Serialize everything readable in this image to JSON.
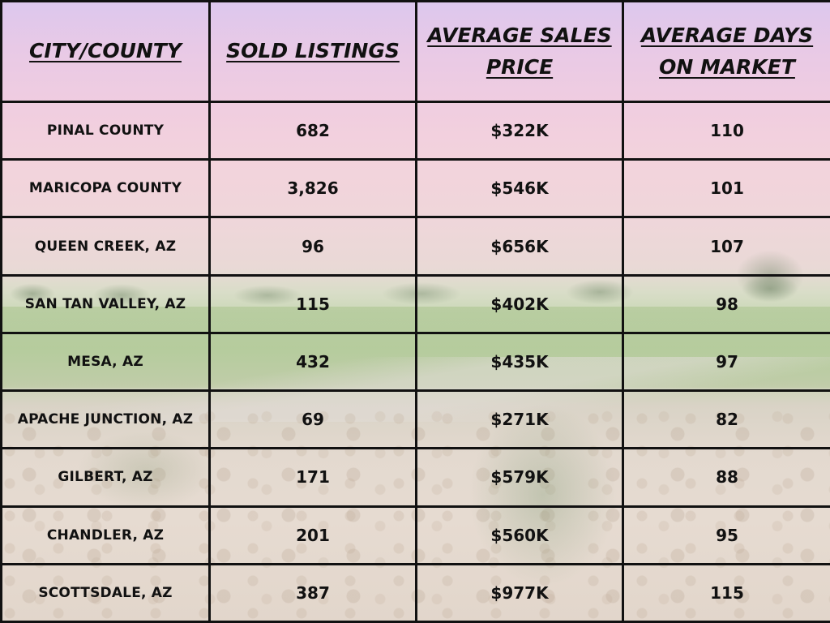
{
  "table": {
    "headers": {
      "city": "CITY/COUNTY",
      "sold": "SOLD LISTINGS",
      "price_line1": "AVERAGE SALES",
      "price_line2": "PRICE",
      "days_line1": "AVERAGE DAYS",
      "days_line2": "ON MARKET"
    },
    "rows": [
      {
        "city": "PINAL COUNTY",
        "sold": "682",
        "price": "$322K",
        "days": "110"
      },
      {
        "city": "MARICOPA COUNTY",
        "sold": "3,826",
        "price": "$546K",
        "days": "101"
      },
      {
        "city": "QUEEN CREEK, AZ",
        "sold": "96",
        "price": "$656K",
        "days": "107"
      },
      {
        "city": "SAN TAN VALLEY, AZ",
        "sold": "115",
        "price": "$402K",
        "days": "98"
      },
      {
        "city": "MESA, AZ",
        "sold": "432",
        "price": "$435K",
        "days": "97"
      },
      {
        "city": "APACHE JUNCTION, AZ",
        "sold": "69",
        "price": "$271K",
        "days": "82"
      },
      {
        "city": "GILBERT, AZ",
        "sold": "171",
        "price": "$579K",
        "days": "88"
      },
      {
        "city": "CHANDLER, AZ",
        "sold": "201",
        "price": "$560K",
        "days": "95"
      },
      {
        "city": "SCOTTSDALE, AZ",
        "sold": "387",
        "price": "$977K",
        "days": "115"
      }
    ]
  },
  "colors": {
    "border": "#111111",
    "sky_top": "#dcc8ee",
    "sky_pink": "#f0cde0",
    "fairway": "#bfd3aa",
    "ground": "#e3d9cf"
  }
}
